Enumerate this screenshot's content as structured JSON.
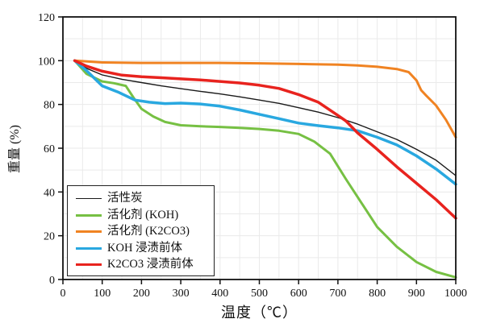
{
  "figure": {
    "xlabel": "温度（℃）",
    "ylabel": "重量 (%)"
  },
  "chart_data": {
    "type": "line",
    "title": "",
    "xlabel": "温度（℃）",
    "ylabel": "重量 (%)",
    "xlim": [
      0,
      1000
    ],
    "ylim": [
      0,
      120
    ],
    "xticks": [
      0,
      100,
      200,
      300,
      400,
      500,
      600,
      700,
      800,
      900,
      1000
    ],
    "yticks": [
      0,
      20,
      40,
      60,
      80,
      100,
      120
    ],
    "grid": {
      "on": true,
      "x_step": 50,
      "y_step": 10,
      "color": "#eaeaea"
    },
    "legend": {
      "position": "lower-left",
      "border": true
    },
    "series": [
      {
        "name": "活性炭",
        "color": "#1a1a1a",
        "line_width": 1.4,
        "x": [
          30,
          60,
          100,
          150,
          200,
          250,
          300,
          350,
          400,
          450,
          500,
          550,
          600,
          650,
          700,
          750,
          800,
          850,
          900,
          950,
          1000
        ],
        "y": [
          100,
          96.5,
          93.5,
          91.5,
          90,
          88.5,
          87.2,
          86,
          84.8,
          83.5,
          82,
          80.5,
          78.5,
          76.5,
          74,
          71,
          67.5,
          64,
          59.5,
          54.5,
          47.5
        ]
      },
      {
        "name": "活化剂 (KOH)",
        "color": "#76c043",
        "line_width": 3,
        "x": [
          30,
          60,
          100,
          130,
          160,
          180,
          200,
          230,
          260,
          300,
          350,
          400,
          450,
          500,
          550,
          600,
          640,
          680,
          720,
          760,
          800,
          850,
          900,
          950,
          1000
        ],
        "y": [
          100,
          94,
          90.5,
          89.7,
          88.5,
          83,
          78,
          74.5,
          72,
          70.5,
          70,
          69.7,
          69.3,
          68.8,
          68,
          66.5,
          63,
          57.5,
          46,
          35,
          24,
          15,
          8,
          3.5,
          1
        ]
      },
      {
        "name": "活化剂 (K2CO3)",
        "color": "#f08322",
        "line_width": 3,
        "x": [
          30,
          100,
          200,
          300,
          400,
          500,
          600,
          700,
          750,
          800,
          850,
          880,
          900,
          912,
          925,
          950,
          975,
          1000
        ],
        "y": [
          100,
          99.2,
          99,
          99,
          99,
          98.8,
          98.5,
          98.2,
          97.8,
          97.2,
          96.2,
          94.8,
          91,
          86.5,
          84,
          79.5,
          73,
          65
        ]
      },
      {
        "name": "KOH  浸渍前体",
        "color": "#29a8e0",
        "line_width": 3.5,
        "x": [
          30,
          60,
          100,
          140,
          183,
          220,
          260,
          300,
          350,
          400,
          450,
          500,
          550,
          600,
          650,
          700,
          750,
          800,
          850,
          900,
          950,
          1000
        ],
        "y": [
          100,
          95.5,
          88.5,
          85.7,
          82,
          81,
          80.4,
          80.6,
          80.2,
          79.2,
          77.5,
          75.5,
          73.5,
          71.5,
          70.3,
          69.3,
          68,
          65,
          61.5,
          56.5,
          50.5,
          43.5
        ]
      },
      {
        "name": "K2CO3 浸渍前体",
        "color": "#e8231e",
        "line_width": 3.5,
        "x": [
          30,
          60,
          100,
          150,
          200,
          250,
          300,
          350,
          400,
          450,
          500,
          550,
          600,
          650,
          700,
          720,
          750,
          800,
          850,
          900,
          950,
          1000
        ],
        "y": [
          100,
          97.5,
          95.2,
          93.4,
          92.7,
          92.2,
          91.7,
          91.2,
          90.5,
          89.8,
          88.8,
          87.3,
          84.5,
          81,
          75,
          72.5,
          67,
          59.5,
          51.5,
          44,
          36.5,
          28
        ]
      }
    ]
  }
}
